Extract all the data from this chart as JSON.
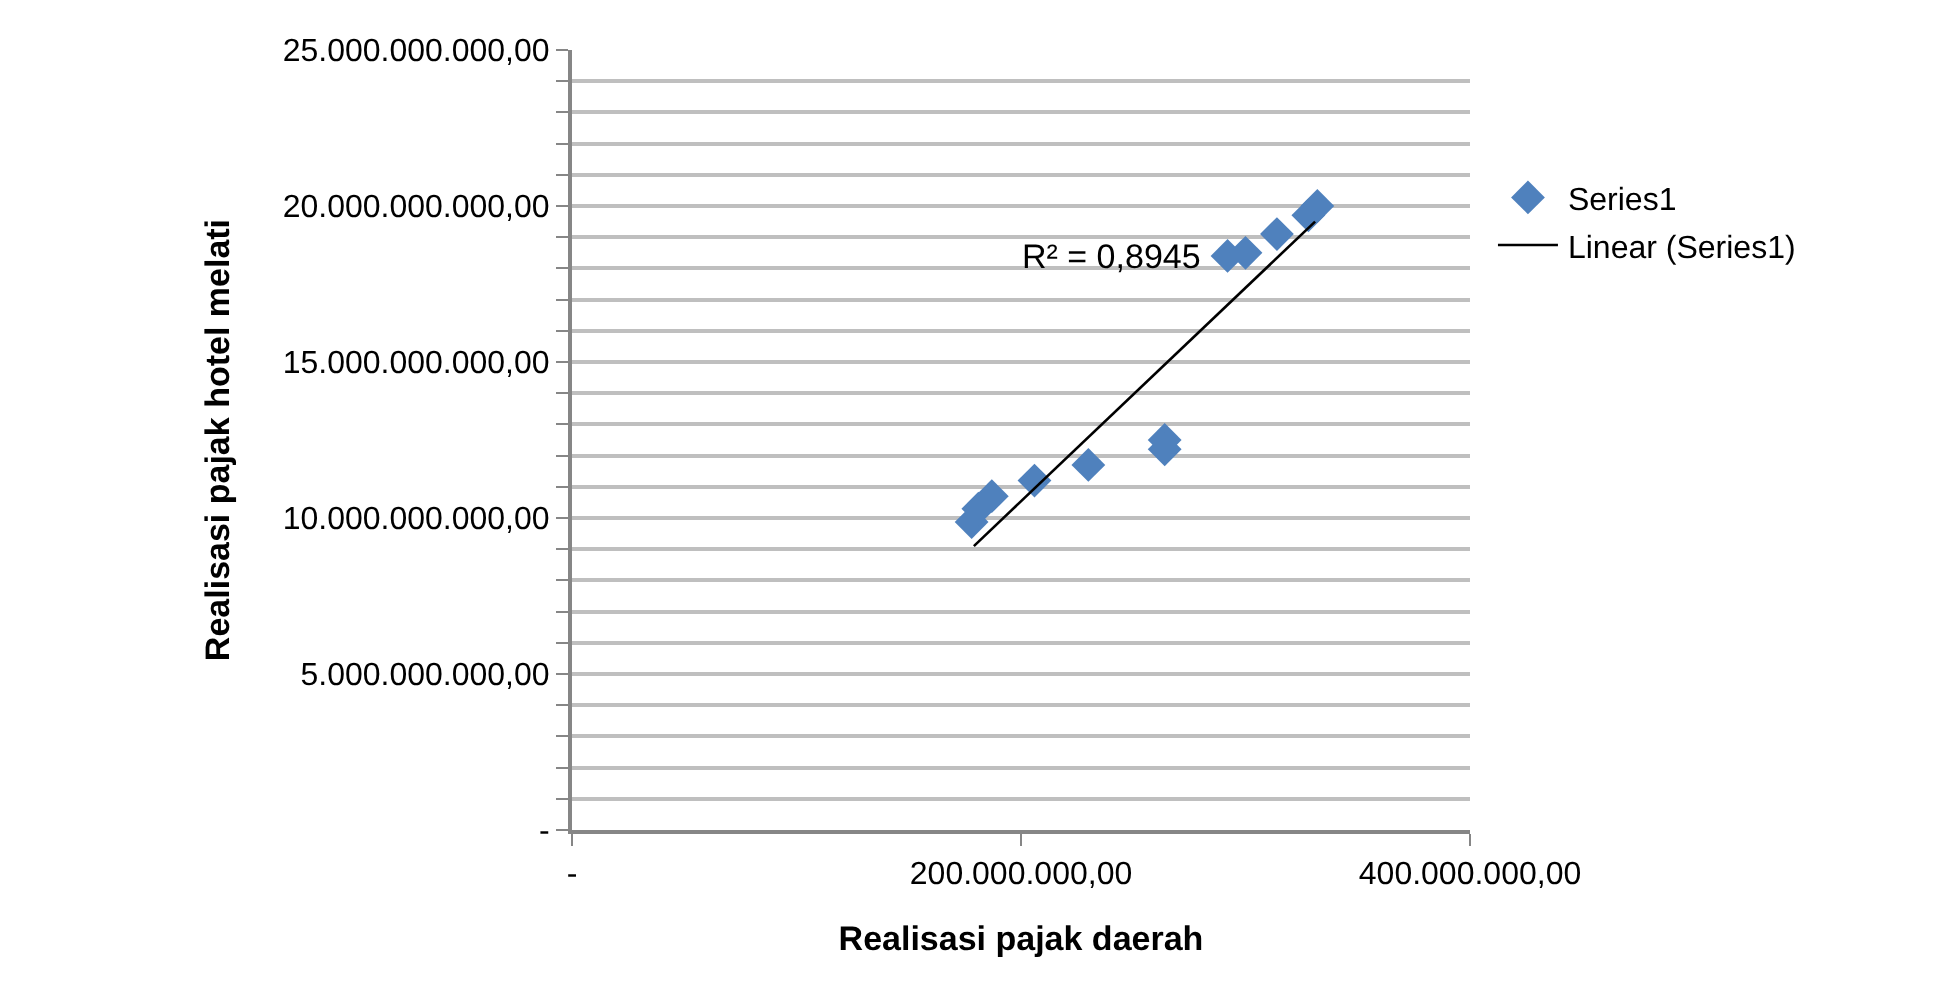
{
  "chart_data": {
    "type": "scatter",
    "xlabel": "Realisasi pajak daerah",
    "ylabel": "Realisasi pajak hotel melati",
    "series": [
      {
        "name": "Series1",
        "color": "#4f81bd",
        "marker": "diamond",
        "x": [
          178000000,
          181000000,
          187000000,
          206000000,
          230000000,
          264000000,
          264000000,
          292000000,
          300000000,
          314000000,
          328000000,
          332000000
        ],
        "values": [
          9870000000,
          10300000000,
          10700000000,
          11200000000,
          11700000000,
          12500000000,
          12200000000,
          18400000000,
          18500000000,
          19100000000,
          19700000000,
          20000000000
        ]
      },
      {
        "name": "Linear (Series1)",
        "type": "line",
        "color": "#000000",
        "line_style": "solid",
        "marker": "none",
        "x": [
          179000000,
          331000000
        ],
        "values": [
          9100000000,
          19500000000
        ]
      }
    ],
    "annotations": [
      "R² = 0,8945"
    ],
    "xlim": [
      0,
      400000000
    ],
    "xticks": [
      {
        "value": 0,
        "label": "-"
      },
      {
        "value": 200000000,
        "label": "200.000.000,00"
      },
      {
        "value": 400000000,
        "label": "400.000.000,00"
      }
    ],
    "ylim": [
      0,
      25000000000
    ],
    "yticks": [
      {
        "value": 0,
        "label": "-"
      },
      {
        "value": 1000000000,
        "label": null
      },
      {
        "value": 2000000000,
        "label": null
      },
      {
        "value": 3000000000,
        "label": null
      },
      {
        "value": 4000000000,
        "label": null
      },
      {
        "value": 5000000000,
        "label": "5.000.000.000,00"
      },
      {
        "value": 6000000000,
        "label": null
      },
      {
        "value": 7000000000,
        "label": null
      },
      {
        "value": 8000000000,
        "label": null
      },
      {
        "value": 9000000000,
        "label": null
      },
      {
        "value": 10000000000,
        "label": "10.000.000.000,00"
      },
      {
        "value": 11000000000,
        "label": null
      },
      {
        "value": 12000000000,
        "label": null
      },
      {
        "value": 13000000000,
        "label": null
      },
      {
        "value": 14000000000,
        "label": null
      },
      {
        "value": 15000000000,
        "label": "15.000.000.000,00"
      },
      {
        "value": 16000000000,
        "label": null
      },
      {
        "value": 17000000000,
        "label": null
      },
      {
        "value": 18000000000,
        "label": null
      },
      {
        "value": 19000000000,
        "label": null
      },
      {
        "value": 20000000000,
        "label": "20.000.000.000,00"
      },
      {
        "value": 21000000000,
        "label": null
      },
      {
        "value": 22000000000,
        "label": null
      },
      {
        "value": 23000000000,
        "label": null
      },
      {
        "value": 24000000000,
        "label": null
      },
      {
        "value": 25000000000,
        "label": "25.000.000.000,00"
      }
    ],
    "grid": "y",
    "legend": "right"
  }
}
